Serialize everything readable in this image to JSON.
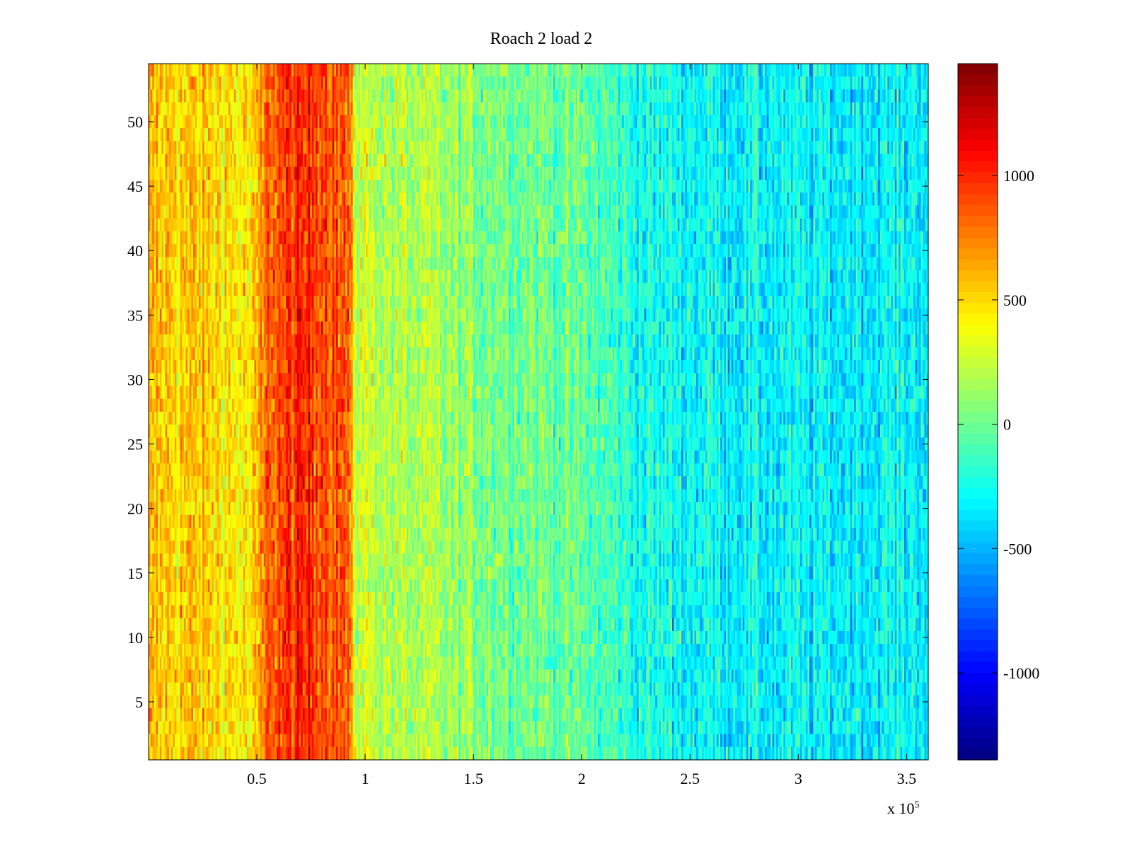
{
  "chart_data": {
    "type": "heatmap",
    "title": "Roach 2 load 2",
    "xlabel": "",
    "ylabel": "",
    "x_multiplier": {
      "base": "x 10",
      "exponent": "5"
    },
    "xlim": [
      0,
      360000
    ],
    "ylim": [
      0.5,
      54.5
    ],
    "x_ticks": [
      0.5,
      1,
      1.5,
      2,
      2.5,
      3,
      3.5
    ],
    "x_tick_labels": [
      "0.5",
      "1",
      "1.5",
      "2",
      "2.5",
      "3",
      "3.5"
    ],
    "y_ticks": [
      5,
      10,
      15,
      20,
      25,
      30,
      35,
      40,
      45,
      50
    ],
    "y_tick_labels": [
      "5",
      "10",
      "15",
      "20",
      "25",
      "30",
      "35",
      "40",
      "45",
      "50"
    ],
    "rows": 54,
    "colormap": "jet",
    "color_range": [
      -1350,
      1450
    ],
    "colorbar_ticks": [
      1000,
      500,
      0,
      -500,
      -1000
    ],
    "colorbar_tick_labels": [
      "1000",
      "500",
      "0",
      "-500",
      "-1000"
    ],
    "mean_profile": [
      {
        "x": 0,
        "value": 550
      },
      {
        "x": 30000,
        "value": 520
      },
      {
        "x": 48000,
        "value": 420
      },
      {
        "x": 56000,
        "value": 880
      },
      {
        "x": 75000,
        "value": 1000
      },
      {
        "x": 92000,
        "value": 850
      },
      {
        "x": 95000,
        "value": 300
      },
      {
        "x": 110000,
        "value": 200
      },
      {
        "x": 150000,
        "value": 80
      },
      {
        "x": 200000,
        "value": -30
      },
      {
        "x": 230000,
        "value": -250
      },
      {
        "x": 300000,
        "value": -330
      },
      {
        "x": 360000,
        "value": -300
      }
    ]
  }
}
